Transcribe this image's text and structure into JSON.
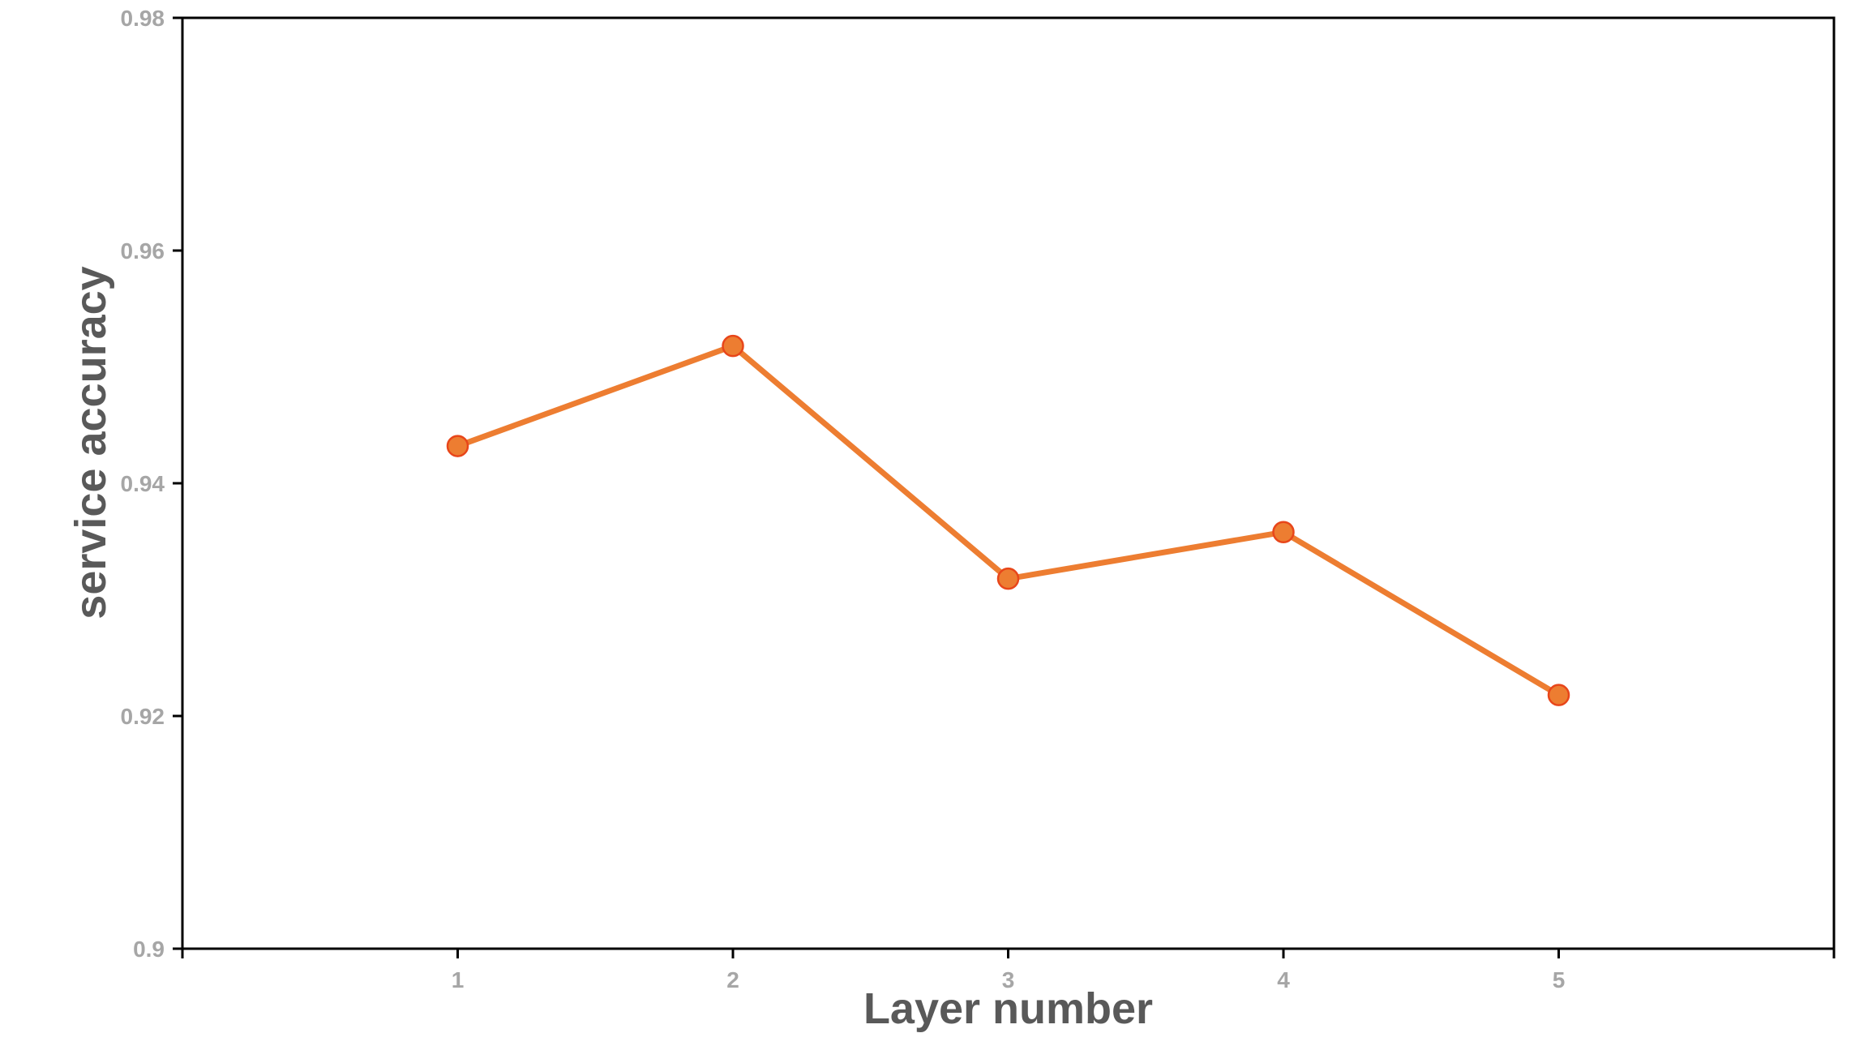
{
  "chart_data": {
    "type": "line",
    "title": "",
    "xlabel": "Layer number",
    "ylabel": "service accuracy",
    "x": [
      1,
      2,
      3,
      4,
      5
    ],
    "xlim": [
      0,
      6
    ],
    "xticks": [
      "1",
      "2",
      "3",
      "4",
      "5"
    ],
    "ylim": [
      0.9,
      0.98
    ],
    "yticks": [
      "0.9",
      "0.92",
      "0.94",
      "0.96",
      "0.98"
    ],
    "grid": false,
    "legend": "none",
    "series": [
      {
        "values": [
          0.9432,
          0.9518,
          0.9318,
          0.9358,
          0.9218
        ],
        "color": "#ED7D31",
        "marker": "circle"
      }
    ],
    "colors": {
      "line": "#ED7D31",
      "marker_edge": "#E8461A",
      "axis": "#000000",
      "tick_text": "#A6A6A6",
      "axis_title": "#595959"
    }
  }
}
